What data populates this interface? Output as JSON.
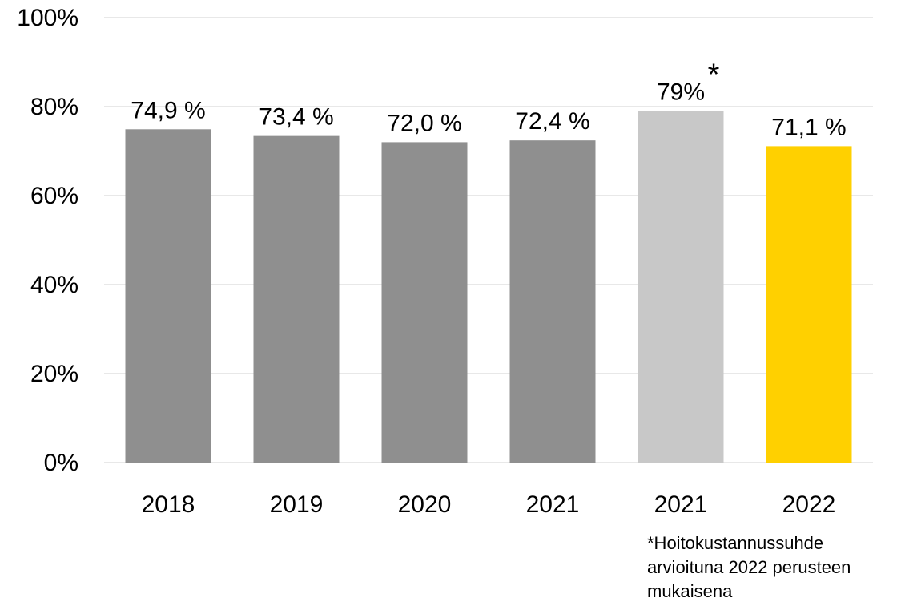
{
  "chart_data": {
    "type": "bar",
    "categories": [
      "2018",
      "2019",
      "2020",
      "2021",
      "2021",
      "2022"
    ],
    "values": [
      74.9,
      73.4,
      72.0,
      72.4,
      79,
      71.1
    ],
    "data_labels": [
      "74,9 %",
      "73,4 %",
      "72,0 %",
      "72,4 %",
      "79%",
      "71,1 %"
    ],
    "bar_colors": [
      "#8f8f8f",
      "#8f8f8f",
      "#8f8f8f",
      "#8f8f8f",
      "#c8c8c8",
      "#ffd000"
    ],
    "annotations": [
      {
        "bar_index": 4,
        "text": "*"
      }
    ],
    "y_ticks": [
      "0%",
      "20%",
      "40%",
      "60%",
      "80%",
      "100%"
    ],
    "y_tick_values": [
      0,
      20,
      40,
      60,
      80,
      100
    ],
    "ylim": [
      0,
      100
    ],
    "grid": true,
    "gridline_color": "#d9d9d9",
    "title": "",
    "xlabel": "",
    "ylabel": ""
  },
  "footnote": {
    "lines": [
      "*Hoitokustannussuhde",
      "arvioituna 2022 perusteen",
      "mukaisena"
    ]
  }
}
